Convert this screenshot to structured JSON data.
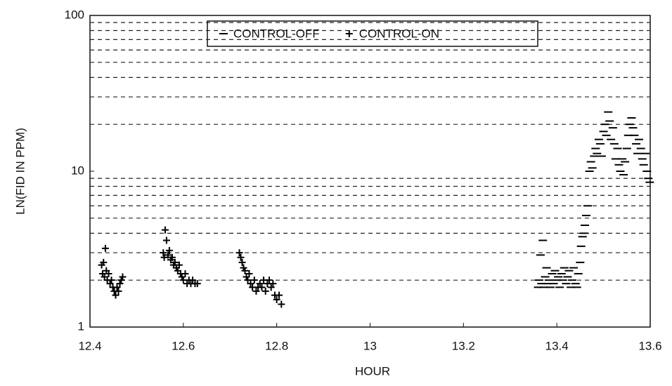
{
  "chart_data": {
    "type": "scatter",
    "x_label": "HOUR",
    "y_label": "LN(FID IN PPM)",
    "xlim": [
      12.4,
      13.6
    ],
    "xticks": [
      12.4,
      12.6,
      12.8,
      13,
      13.2,
      13.4,
      13.6
    ],
    "ylim": [
      1,
      100
    ],
    "yticks": [
      1,
      10,
      100
    ],
    "log_y": true,
    "minor_yticks": [
      2,
      3,
      4,
      5,
      6,
      7,
      8,
      9,
      20,
      30,
      40,
      50,
      60,
      70,
      80,
      90
    ],
    "grid": true,
    "legend": "top",
    "series": [
      {
        "name": "CONTROL-OFF",
        "marker": "-",
        "color": "#000000",
        "x": [
          13.36,
          13.362,
          13.365,
          13.367,
          13.37,
          13.372,
          13.375,
          13.378,
          13.38,
          13.383,
          13.386,
          13.39,
          13.393,
          13.396,
          13.4,
          13.403,
          13.406,
          13.41,
          13.413,
          13.416,
          13.42,
          13.423,
          13.426,
          13.43,
          13.433,
          13.436,
          13.44,
          13.443,
          13.446,
          13.45,
          13.452,
          13.455,
          13.458,
          13.46,
          13.463,
          13.466,
          13.47,
          13.473,
          13.476,
          13.48,
          13.483,
          13.486,
          13.49,
          13.493,
          13.496,
          13.5,
          13.503,
          13.506,
          13.51,
          13.513,
          13.516,
          13.52,
          13.523,
          13.526,
          13.53,
          13.533,
          13.536,
          13.54,
          13.543,
          13.546,
          13.55,
          13.553,
          13.556,
          13.56,
          13.563,
          13.566,
          13.57,
          13.573,
          13.576,
          13.58,
          13.583,
          13.586,
          13.59,
          13.593,
          13.596,
          13.599
        ],
        "values": [
          1.8,
          2.0,
          2.9,
          1.9,
          3.6,
          1.8,
          2.1,
          2.4,
          1.9,
          2.0,
          1.8,
          2.2,
          1.9,
          2.3,
          2.0,
          2.1,
          1.8,
          2.2,
          2.0,
          2.4,
          1.9,
          2.1,
          2.3,
          1.8,
          2.0,
          2.4,
          1.9,
          1.8,
          2.2,
          2.6,
          3.3,
          3.8,
          4.0,
          4.5,
          5.2,
          6.0,
          10.0,
          11.5,
          10.5,
          12.5,
          14.0,
          13.0,
          16.0,
          15.0,
          12.5,
          18.0,
          20.0,
          17.0,
          24.0,
          21.0,
          16.0,
          19.0,
          15.0,
          12.0,
          14.0,
          11.0,
          10.0,
          12.0,
          9.5,
          11.5,
          14.0,
          17.0,
          20.0,
          22.0,
          19.0,
          17.0,
          15.0,
          13.0,
          16.0,
          14.0,
          12.0,
          11.0,
          13.0,
          10.0,
          9.0,
          8.5
        ]
      },
      {
        "name": "CONTROL-ON",
        "marker": "+",
        "color": "#000000",
        "x": [
          12.425,
          12.427,
          12.429,
          12.431,
          12.433,
          12.435,
          12.437,
          12.44,
          12.443,
          12.446,
          12.449,
          12.452,
          12.455,
          12.458,
          12.461,
          12.464,
          12.467,
          12.47,
          12.557,
          12.559,
          12.561,
          12.564,
          12.567,
          12.57,
          12.573,
          12.576,
          12.579,
          12.582,
          12.585,
          12.588,
          12.591,
          12.594,
          12.597,
          12.6,
          12.604,
          12.608,
          12.612,
          12.616,
          12.62,
          12.625,
          12.63,
          12.72,
          12.723,
          12.726,
          12.729,
          12.732,
          12.735,
          12.738,
          12.741,
          12.744,
          12.748,
          12.752,
          12.756,
          12.76,
          12.764,
          12.768,
          12.772,
          12.776,
          12.78,
          12.784,
          12.788,
          12.792,
          12.796,
          12.8,
          12.805,
          12.81
        ],
        "values": [
          2.5,
          2.2,
          2.6,
          2.1,
          3.2,
          2.3,
          2.0,
          2.2,
          1.9,
          2.0,
          1.8,
          1.7,
          1.6,
          1.8,
          1.7,
          1.9,
          2.0,
          2.1,
          3.0,
          2.8,
          4.2,
          3.6,
          2.9,
          3.1,
          2.7,
          2.8,
          2.5,
          2.6,
          2.4,
          2.3,
          2.5,
          2.2,
          2.1,
          2.0,
          2.2,
          1.9,
          2.0,
          1.9,
          2.0,
          1.9,
          1.9,
          3.0,
          2.8,
          2.6,
          2.4,
          2.3,
          2.1,
          2.0,
          2.2,
          1.9,
          1.8,
          2.0,
          1.7,
          1.8,
          1.9,
          1.8,
          2.0,
          1.7,
          1.9,
          2.0,
          1.8,
          1.9,
          1.6,
          1.5,
          1.6,
          1.4
        ]
      }
    ]
  }
}
